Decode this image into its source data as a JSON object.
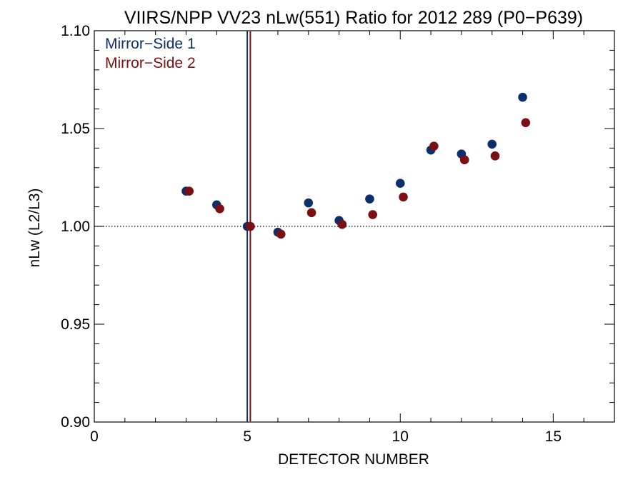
{
  "chart_data": {
    "type": "scatter",
    "title": "VIIRS/NPP VV23 nLw(551) Ratio for 2012 289 (P0−P639)",
    "xlabel": "DETECTOR NUMBER",
    "ylabel": "nLw (L2/L3)",
    "xlim": [
      0,
      17
    ],
    "ylim": [
      0.9,
      1.1
    ],
    "x_ticks": [
      0,
      5,
      10,
      15
    ],
    "x_tick_labels": [
      "0",
      "5",
      "10",
      "15"
    ],
    "y_ticks": [
      0.9,
      0.95,
      1.0,
      1.05,
      1.1
    ],
    "y_tick_labels": [
      "0.90",
      "0.95",
      "1.00",
      "1.05",
      "1.10"
    ],
    "reference_line": {
      "y": 1.0,
      "style": "dotted"
    },
    "vertical_markers": [
      {
        "series": "Mirror−Side 1",
        "x": 5.0
      },
      {
        "series": "Mirror−Side 2",
        "x": 5.1
      }
    ],
    "legend_position": "top-left",
    "series": [
      {
        "name": "Mirror−Side 1",
        "color": "#0d2f6b",
        "x": [
          3,
          4,
          5,
          6,
          7,
          8,
          9,
          10,
          11,
          12,
          13,
          14
        ],
        "y": [
          1.018,
          1.011,
          1.0,
          0.997,
          1.012,
          1.003,
          1.014,
          1.022,
          1.039,
          1.037,
          1.042,
          1.066
        ]
      },
      {
        "name": "Mirror−Side 2",
        "color": "#7a0f14",
        "x": [
          3.1,
          4.1,
          5.1,
          6.1,
          7.1,
          8.1,
          9.1,
          10.1,
          11.1,
          12.1,
          13.1,
          14.1
        ],
        "y": [
          1.018,
          1.009,
          1.0,
          0.996,
          1.007,
          1.001,
          1.006,
          1.015,
          1.041,
          1.034,
          1.036,
          1.053
        ]
      }
    ]
  }
}
